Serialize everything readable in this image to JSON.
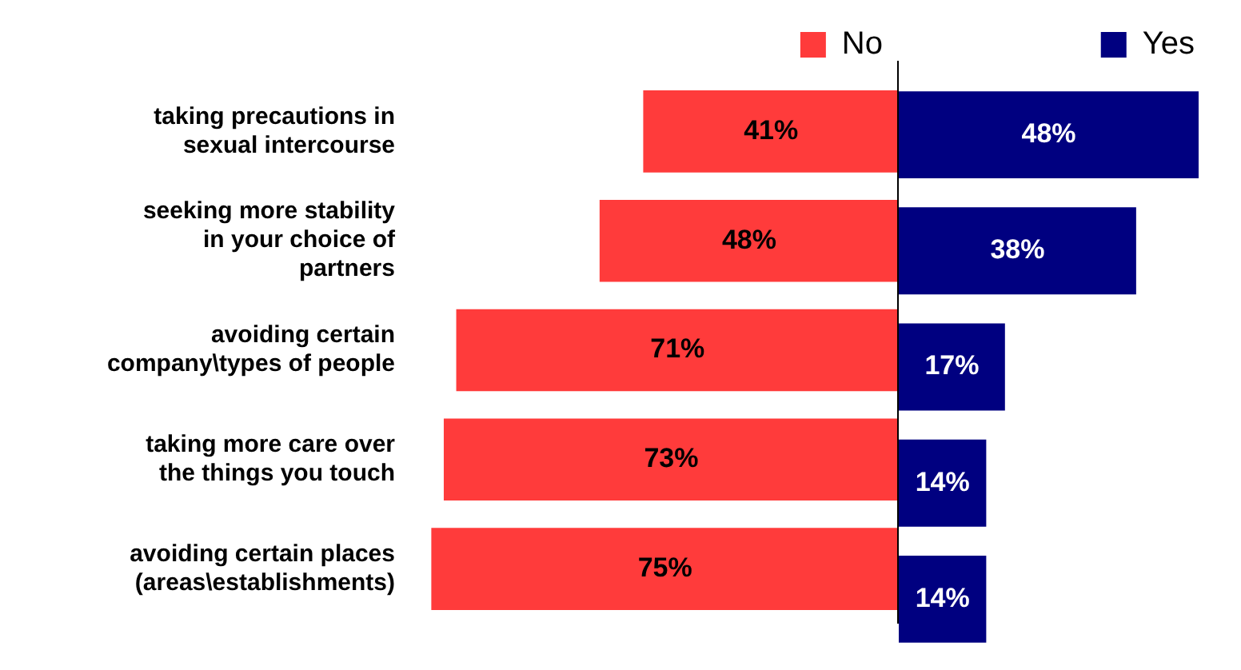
{
  "chart_data": [
    {
      "type": "bar",
      "orientation": "horizontal",
      "tick_labels": "y",
      "legend": "top right",
      "grid": false,
      "categories": [
        "taking precautions in sexual intercourse",
        "seeking more stability in your choice of partners",
        "avoiding certain company\\types of people",
        "taking more care over the things you touch",
        "avoiding certain places (areas\\establishments)"
      ],
      "series": [
        {
          "name": "No",
          "color": "#ff3b3b",
          "values": [
            41,
            48,
            71,
            73,
            75
          ],
          "value_labels": [
            "41%",
            "48%",
            "71%",
            "73%",
            "75%"
          ]
        }
      ]
    },
    {
      "type": "bar",
      "orientation": "horizontal",
      "tick_labels": false,
      "legend": "top right",
      "grid": false,
      "categories": [
        null,
        null,
        null,
        null,
        null
      ],
      "series": [
        {
          "name": "Yes",
          "color": "#000080",
          "values": [
            48,
            38,
            17,
            14,
            14
          ],
          "value_labels": [
            "48%",
            "38%",
            "17%",
            "14%",
            "14%"
          ]
        }
      ]
    }
  ]
}
